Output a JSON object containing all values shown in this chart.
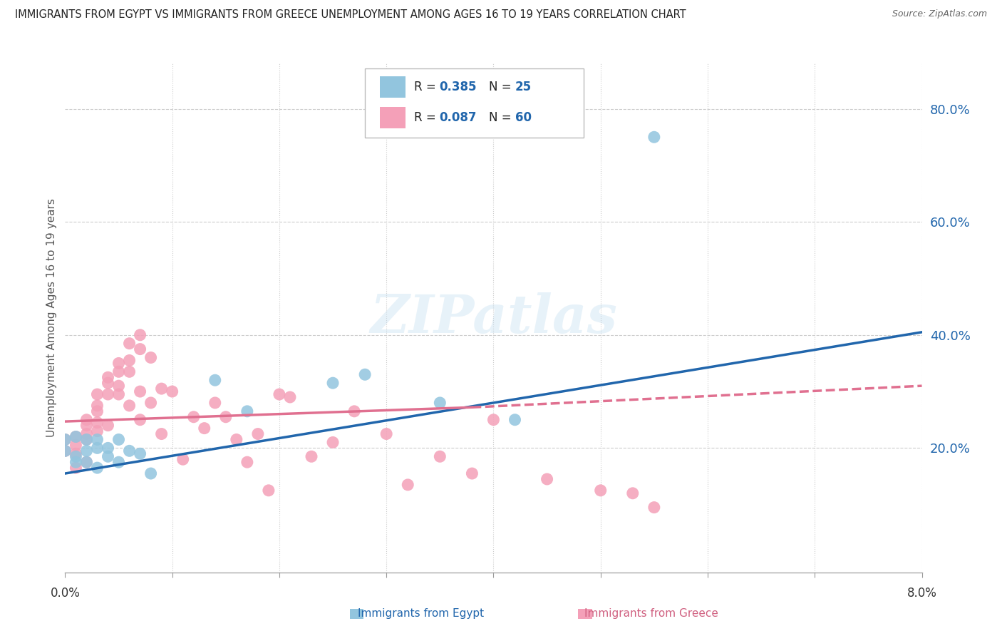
{
  "title": "IMMIGRANTS FROM EGYPT VS IMMIGRANTS FROM GREECE UNEMPLOYMENT AMONG AGES 16 TO 19 YEARS CORRELATION CHART",
  "source": "Source: ZipAtlas.com",
  "ylabel": "Unemployment Among Ages 16 to 19 years",
  "xlim": [
    0.0,
    0.08
  ],
  "ylim": [
    -0.02,
    0.88
  ],
  "y_ticks": [
    0.2,
    0.4,
    0.6,
    0.8
  ],
  "y_tick_labels": [
    "20.0%",
    "40.0%",
    "60.0%",
    "80.0%"
  ],
  "egypt_color": "#92c5de",
  "greece_color": "#f4a0b8",
  "egypt_line_color": "#2166ac",
  "greece_line_color": "#e07090",
  "watermark": "ZIPatlas",
  "background_color": "#ffffff",
  "grid_color": "#cccccc",
  "egypt_scatter_x": [
    0.0,
    0.0,
    0.001,
    0.001,
    0.001,
    0.002,
    0.002,
    0.002,
    0.003,
    0.003,
    0.003,
    0.004,
    0.004,
    0.005,
    0.005,
    0.006,
    0.007,
    0.008,
    0.014,
    0.017,
    0.025,
    0.028,
    0.035,
    0.042,
    0.055
  ],
  "egypt_scatter_y": [
    0.215,
    0.195,
    0.22,
    0.185,
    0.175,
    0.215,
    0.195,
    0.175,
    0.215,
    0.2,
    0.165,
    0.2,
    0.185,
    0.215,
    0.175,
    0.195,
    0.19,
    0.155,
    0.32,
    0.265,
    0.315,
    0.33,
    0.28,
    0.25,
    0.75
  ],
  "greece_scatter_x": [
    0.0,
    0.0,
    0.001,
    0.001,
    0.001,
    0.001,
    0.002,
    0.002,
    0.002,
    0.002,
    0.002,
    0.003,
    0.003,
    0.003,
    0.003,
    0.003,
    0.004,
    0.004,
    0.004,
    0.004,
    0.005,
    0.005,
    0.005,
    0.005,
    0.006,
    0.006,
    0.006,
    0.006,
    0.007,
    0.007,
    0.007,
    0.007,
    0.008,
    0.008,
    0.009,
    0.009,
    0.01,
    0.011,
    0.012,
    0.013,
    0.014,
    0.015,
    0.016,
    0.017,
    0.018,
    0.019,
    0.02,
    0.021,
    0.023,
    0.025,
    0.027,
    0.03,
    0.032,
    0.035,
    0.038,
    0.04,
    0.045,
    0.05,
    0.053,
    0.055
  ],
  "greece_scatter_y": [
    0.215,
    0.195,
    0.22,
    0.205,
    0.19,
    0.165,
    0.25,
    0.24,
    0.225,
    0.215,
    0.175,
    0.295,
    0.275,
    0.265,
    0.245,
    0.23,
    0.325,
    0.315,
    0.295,
    0.24,
    0.35,
    0.335,
    0.31,
    0.295,
    0.385,
    0.355,
    0.335,
    0.275,
    0.4,
    0.375,
    0.3,
    0.25,
    0.36,
    0.28,
    0.305,
    0.225,
    0.3,
    0.18,
    0.255,
    0.235,
    0.28,
    0.255,
    0.215,
    0.175,
    0.225,
    0.125,
    0.295,
    0.29,
    0.185,
    0.21,
    0.265,
    0.225,
    0.135,
    0.185,
    0.155,
    0.25,
    0.145,
    0.125,
    0.12,
    0.095
  ],
  "egypt_trend": [
    0.0,
    0.08,
    0.155,
    0.405
  ],
  "greece_trend_solid": [
    0.0,
    0.038,
    0.247,
    0.272
  ],
  "greece_trend_dashed": [
    0.038,
    0.08,
    0.272,
    0.31
  ],
  "x_tick_positions": [
    0.0,
    0.01,
    0.02,
    0.03,
    0.04,
    0.05,
    0.06,
    0.07,
    0.08
  ],
  "legend_r_egypt": "0.385",
  "legend_n_egypt": "25",
  "legend_r_greece": "0.087",
  "legend_n_greece": "60"
}
